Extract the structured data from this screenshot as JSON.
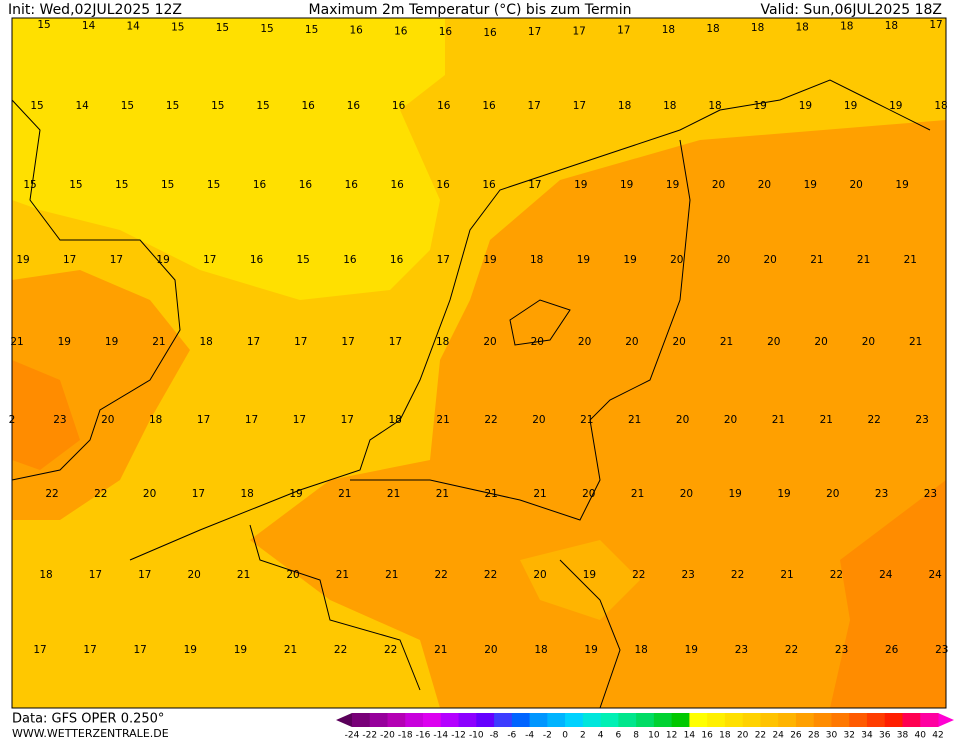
{
  "header": {
    "init": "Init: Wed,02JUL2025 12Z",
    "title": "Maximum 2m Temperatur (°C) bis zum Termin",
    "valid": "Valid: Sun,06JUL2025 18Z"
  },
  "map": {
    "rows": [
      [
        15,
        14,
        14,
        15,
        15,
        15,
        15,
        16,
        16,
        16,
        16,
        17,
        17,
        17,
        18,
        18,
        18,
        18,
        18,
        18,
        17
      ],
      [
        15,
        14,
        15,
        15,
        15,
        15,
        16,
        16,
        16,
        16,
        16,
        17,
        17,
        18,
        18,
        18,
        19,
        19,
        19,
        19,
        18
      ],
      [
        15,
        15,
        15,
        15,
        15,
        16,
        16,
        16,
        16,
        16,
        16,
        17,
        19,
        19,
        19,
        20,
        20,
        19,
        20,
        19
      ],
      [
        19,
        17,
        17,
        19,
        17,
        16,
        15,
        16,
        16,
        17,
        19,
        18,
        19,
        19,
        20,
        20,
        20,
        21,
        21,
        21
      ],
      [
        21,
        19,
        19,
        21,
        18,
        17,
        17,
        17,
        17,
        18,
        20,
        20,
        20,
        20,
        20,
        21,
        20,
        20,
        20,
        21
      ],
      [
        2,
        23,
        20,
        18,
        17,
        17,
        17,
        17,
        18,
        21,
        22,
        20,
        21,
        21,
        20,
        20,
        21,
        21,
        22,
        23
      ],
      [
        22,
        22,
        20,
        17,
        18,
        19,
        21,
        21,
        21,
        21,
        21,
        20,
        21,
        20,
        19,
        19,
        20,
        23,
        23
      ],
      [
        18,
        17,
        17,
        20,
        21,
        20,
        21,
        21,
        22,
        22,
        20,
        19,
        22,
        23,
        22,
        21,
        22,
        24,
        24
      ],
      [
        17,
        17,
        17,
        19,
        19,
        21,
        22,
        22,
        21,
        20,
        18,
        19,
        18,
        19,
        23,
        22,
        23,
        26,
        23
      ]
    ]
  },
  "colorbar": {
    "labels": [
      -24,
      -22,
      -20,
      -18,
      -16,
      -14,
      -12,
      -10,
      -8,
      -6,
      -4,
      -2,
      0,
      2,
      4,
      6,
      8,
      10,
      12,
      14,
      16,
      18,
      20,
      22,
      24,
      26,
      28,
      30,
      32,
      34,
      36,
      38,
      40,
      42
    ],
    "colors": [
      "#780078",
      "#96009b",
      "#b400b4",
      "#c800dc",
      "#dc00f0",
      "#b400ff",
      "#8c00ff",
      "#6400ff",
      "#3c3cff",
      "#0064ff",
      "#0096ff",
      "#00b4ff",
      "#00d2ff",
      "#00e6dc",
      "#00f0b4",
      "#00e68c",
      "#00dc64",
      "#00d232",
      "#00c800",
      "#ffff00",
      "#fff000",
      "#ffe000",
      "#ffd200",
      "#ffc300",
      "#ffb400",
      "#ffa000",
      "#ff8c00",
      "#ff7800",
      "#ff5a00",
      "#ff3c00",
      "#ff1e00",
      "#ff0050",
      "#ff00a0"
    ]
  },
  "footer": {
    "data": "Data: GFS OPER 0.250°",
    "site": "WWW.WETTERZENTRALE.DE"
  }
}
